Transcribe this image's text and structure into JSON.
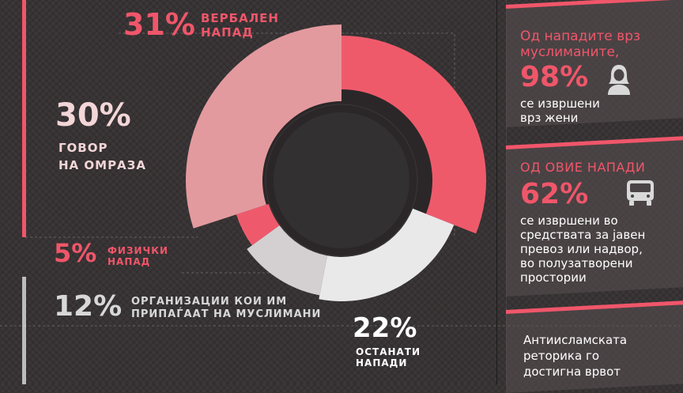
{
  "chart_data": {
    "type": "donut",
    "segments": [
      {
        "label_value": "31%",
        "label_lines": [
          "ВЕРБАЛЕН",
          "НАПАД"
        ],
        "value": 31,
        "color": "#ef5a6b"
      },
      {
        "label_value": "22%",
        "label_lines": [
          "ОСТАНАТИ",
          "НАПАДИ"
        ],
        "value": 22,
        "color": "#e9e9ea"
      },
      {
        "label_value": "12%",
        "label_lines": [
          "ОРГАНИЗАЦИИ КОИ ИМ",
          "ПРИПАЃААТ НА МУСЛИМАНИ"
        ],
        "value": 12,
        "color": "#d4d0d1"
      },
      {
        "label_value": "5%",
        "label_lines": [
          "ФИЗИЧКИ",
          "НАПАД"
        ],
        "value": 5,
        "color": "#ee5a6c"
      },
      {
        "label_value": "30%",
        "label_lines": [
          "ГОВОР",
          "НА ОМРАЗА"
        ],
        "value": 30,
        "color": "#e39a9f"
      }
    ]
  },
  "cards": [
    {
      "heading_lines": [
        "Од нападите врз",
        "муслиманите,"
      ],
      "value": "98%",
      "icon": "woman-icon",
      "text_lines": [
        "се извршени",
        "врз жени"
      ]
    },
    {
      "heading_lines": [
        "ОД ОВИЕ НАПАДИ"
      ],
      "value": "62%",
      "icon": "bus-icon",
      "text_lines": [
        "се извршени во",
        "средствата за јавен",
        "превоз или надвор,",
        "во полузатворени",
        "простории"
      ]
    },
    {
      "heading_lines": [],
      "value": "",
      "icon": "",
      "text_lines": [
        "Антиисламската",
        "реторика го",
        "достигна врвот"
      ]
    }
  ]
}
